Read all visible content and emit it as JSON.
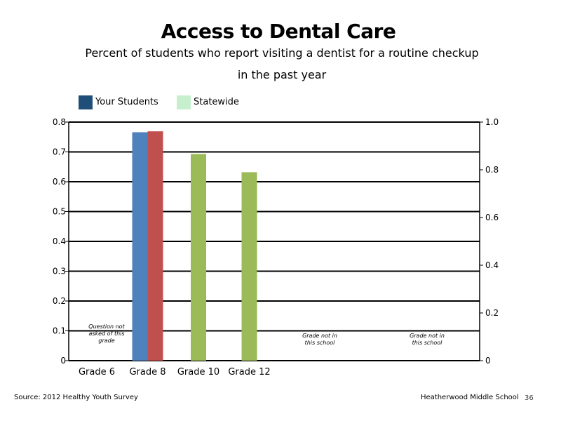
{
  "chart_data": {
    "type": "bar",
    "title": "Access to Dental Care",
    "subtitle": [
      "Percent of students who report visiting a dentist for a routine checkup",
      "in the past year"
    ],
    "categories": [
      "Grade 6",
      "Grade 8",
      "Grade 10",
      "Grade 12"
    ],
    "series": [
      {
        "name": "Your Students",
        "legend_color": "#1f4e79",
        "values": [
          null,
          0.766,
          null,
          null
        ],
        "bar_color": "#4f81bd"
      },
      {
        "name": "Statewide",
        "legend_color": "#c6efce",
        "values": [
          null,
          0.769,
          0.693,
          0.632
        ],
        "bar_colors": [
          "#9bbb59",
          "#c0504d",
          "#9bbb59",
          "#9bbb59"
        ]
      }
    ],
    "ylim": [
      0,
      0.8
    ],
    "yticks": [
      "0",
      "0.1",
      "0.2",
      "0.3",
      "0.4",
      "0.5",
      "0.6",
      "0.7",
      "0.8"
    ],
    "y2lim": [
      0,
      1.0
    ],
    "y2ticks": [
      "0",
      "0.2",
      "0.4",
      "0.6",
      "0.8",
      "1.0"
    ],
    "grid": true,
    "legend_position": "top-left",
    "annotations": [
      {
        "category": "Grade 6",
        "lines": [
          "Question not",
          "asked of this",
          "grade"
        ]
      },
      {
        "category": "Grade 10",
        "lines": [
          "Grade not in",
          "this school"
        ]
      },
      {
        "category": "Grade 12",
        "lines": [
          "Grade not in",
          "this school"
        ]
      }
    ]
  },
  "footer": {
    "source": "Source: 2012 Healthy Youth Survey",
    "school": "Heatherwood Middle  School",
    "page_number": "36"
  }
}
